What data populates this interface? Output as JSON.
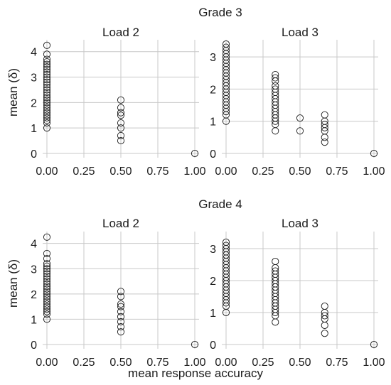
{
  "figure": {
    "xlabel": "mean response accuracy",
    "ylabel": "mean (δ)"
  },
  "chart_data": [
    {
      "type": "scatter",
      "row_title": "Grade 3",
      "title": "Load 2",
      "xlim": [
        0,
        1
      ],
      "ylim": [
        0,
        4.3
      ],
      "xticks": [
        "0.00",
        "0.25",
        "0.50",
        "0.75",
        "1.00"
      ],
      "yticks": [
        "0",
        "1",
        "2",
        "3",
        "4"
      ],
      "points": [
        [
          0,
          4.25
        ],
        [
          0,
          3.9
        ],
        [
          0,
          3.7
        ],
        [
          0,
          3.6
        ],
        [
          0,
          3.5
        ],
        [
          0,
          3.4
        ],
        [
          0,
          3.3
        ],
        [
          0,
          3.2
        ],
        [
          0,
          3.1
        ],
        [
          0,
          3.0
        ],
        [
          0,
          2.9
        ],
        [
          0,
          2.8
        ],
        [
          0,
          2.7
        ],
        [
          0,
          2.6
        ],
        [
          0,
          2.5
        ],
        [
          0,
          2.4
        ],
        [
          0,
          2.3
        ],
        [
          0,
          2.2
        ],
        [
          0,
          2.1
        ],
        [
          0,
          2.0
        ],
        [
          0,
          1.9
        ],
        [
          0,
          1.8
        ],
        [
          0,
          1.7
        ],
        [
          0,
          1.6
        ],
        [
          0,
          1.5
        ],
        [
          0,
          1.4
        ],
        [
          0,
          1.3
        ],
        [
          0,
          1.2
        ],
        [
          0,
          1.0
        ],
        [
          0.5,
          2.1
        ],
        [
          0.5,
          1.8
        ],
        [
          0.5,
          1.6
        ],
        [
          0.5,
          1.5
        ],
        [
          0.5,
          1.2
        ],
        [
          0.5,
          1.0
        ],
        [
          0.5,
          0.7
        ],
        [
          0.5,
          0.5
        ],
        [
          1,
          0
        ]
      ]
    },
    {
      "type": "scatter",
      "row_title": "Grade 3",
      "title": "Load 3",
      "xlim": [
        0,
        1
      ],
      "ylim": [
        0,
        3.4
      ],
      "xticks": [
        "0.00",
        "0.25",
        "0.50",
        "0.75",
        "1.00"
      ],
      "yticks": [
        "0",
        "1",
        "2",
        "3"
      ],
      "points": [
        [
          0,
          3.4
        ],
        [
          0,
          3.3
        ],
        [
          0,
          3.2
        ],
        [
          0,
          3.1
        ],
        [
          0,
          3.0
        ],
        [
          0,
          2.9
        ],
        [
          0,
          2.8
        ],
        [
          0,
          2.7
        ],
        [
          0,
          2.6
        ],
        [
          0,
          2.5
        ],
        [
          0,
          2.4
        ],
        [
          0,
          2.3
        ],
        [
          0,
          2.2
        ],
        [
          0,
          2.1
        ],
        [
          0,
          2.0
        ],
        [
          0,
          1.9
        ],
        [
          0,
          1.8
        ],
        [
          0,
          1.7
        ],
        [
          0,
          1.6
        ],
        [
          0,
          1.5
        ],
        [
          0,
          1.4
        ],
        [
          0,
          1.3
        ],
        [
          0,
          1.2
        ],
        [
          0,
          1.0
        ],
        [
          0.333,
          2.45
        ],
        [
          0.333,
          2.35
        ],
        [
          0.333,
          2.25
        ],
        [
          0.333,
          2.1
        ],
        [
          0.333,
          2.0
        ],
        [
          0.333,
          1.9
        ],
        [
          0.333,
          1.8
        ],
        [
          0.333,
          1.7
        ],
        [
          0.333,
          1.6
        ],
        [
          0.333,
          1.5
        ],
        [
          0.333,
          1.4
        ],
        [
          0.333,
          1.3
        ],
        [
          0.333,
          1.2
        ],
        [
          0.333,
          1.1
        ],
        [
          0.333,
          1.0
        ],
        [
          0.333,
          0.9
        ],
        [
          0.333,
          0.7
        ],
        [
          0.5,
          1.1
        ],
        [
          0.5,
          0.7
        ],
        [
          0.667,
          1.2
        ],
        [
          0.667,
          1.0
        ],
        [
          0.667,
          0.9
        ],
        [
          0.667,
          0.8
        ],
        [
          0.667,
          0.7
        ],
        [
          0.667,
          0.5
        ],
        [
          0.667,
          0.35
        ],
        [
          1,
          0
        ]
      ]
    },
    {
      "type": "scatter",
      "row_title": "Grade 4",
      "title": "Load 2",
      "xlim": [
        0,
        1
      ],
      "ylim": [
        0,
        4.3
      ],
      "xticks": [
        "0.00",
        "0.25",
        "0.50",
        "0.75",
        "1.00"
      ],
      "yticks": [
        "0",
        "1",
        "2",
        "3",
        "4"
      ],
      "points": [
        [
          0,
          4.25
        ],
        [
          0,
          3.6
        ],
        [
          0,
          3.4
        ],
        [
          0,
          3.2
        ],
        [
          0,
          3.1
        ],
        [
          0,
          3.0
        ],
        [
          0,
          2.9
        ],
        [
          0,
          2.8
        ],
        [
          0,
          2.7
        ],
        [
          0,
          2.6
        ],
        [
          0,
          2.5
        ],
        [
          0,
          2.4
        ],
        [
          0,
          2.3
        ],
        [
          0,
          2.2
        ],
        [
          0,
          2.1
        ],
        [
          0,
          2.0
        ],
        [
          0,
          1.9
        ],
        [
          0,
          1.8
        ],
        [
          0,
          1.7
        ],
        [
          0,
          1.6
        ],
        [
          0,
          1.5
        ],
        [
          0,
          1.4
        ],
        [
          0,
          1.3
        ],
        [
          0,
          1.2
        ],
        [
          0,
          1.0
        ],
        [
          0.5,
          2.1
        ],
        [
          0.5,
          1.9
        ],
        [
          0.5,
          1.6
        ],
        [
          0.5,
          1.5
        ],
        [
          0.5,
          1.3
        ],
        [
          0.5,
          1.1
        ],
        [
          0.5,
          0.9
        ],
        [
          0.5,
          0.7
        ],
        [
          0.5,
          0.5
        ],
        [
          1,
          0
        ]
      ]
    },
    {
      "type": "scatter",
      "row_title": "Grade 4",
      "title": "Load 3",
      "xlim": [
        0,
        1
      ],
      "ylim": [
        0,
        3.4
      ],
      "xticks": [
        "0.00",
        "0.25",
        "0.50",
        "0.75",
        "1.00"
      ],
      "yticks": [
        "0",
        "1",
        "2",
        "3"
      ],
      "points": [
        [
          0,
          3.2
        ],
        [
          0,
          3.1
        ],
        [
          0,
          3.0
        ],
        [
          0,
          2.9
        ],
        [
          0,
          2.8
        ],
        [
          0,
          2.7
        ],
        [
          0,
          2.6
        ],
        [
          0,
          2.5
        ],
        [
          0,
          2.4
        ],
        [
          0,
          2.3
        ],
        [
          0,
          2.2
        ],
        [
          0,
          2.1
        ],
        [
          0,
          2.0
        ],
        [
          0,
          1.9
        ],
        [
          0,
          1.8
        ],
        [
          0,
          1.7
        ],
        [
          0,
          1.6
        ],
        [
          0,
          1.5
        ],
        [
          0,
          1.4
        ],
        [
          0,
          1.3
        ],
        [
          0,
          1.2
        ],
        [
          0,
          1.0
        ],
        [
          0.333,
          2.6
        ],
        [
          0.333,
          2.4
        ],
        [
          0.333,
          2.3
        ],
        [
          0.333,
          2.2
        ],
        [
          0.333,
          2.1
        ],
        [
          0.333,
          2.0
        ],
        [
          0.333,
          1.9
        ],
        [
          0.333,
          1.8
        ],
        [
          0.333,
          1.7
        ],
        [
          0.333,
          1.6
        ],
        [
          0.333,
          1.5
        ],
        [
          0.333,
          1.4
        ],
        [
          0.333,
          1.3
        ],
        [
          0.333,
          1.2
        ],
        [
          0.333,
          1.1
        ],
        [
          0.333,
          1.0
        ],
        [
          0.333,
          0.9
        ],
        [
          0.333,
          0.7
        ],
        [
          0.667,
          1.2
        ],
        [
          0.667,
          1.0
        ],
        [
          0.667,
          0.9
        ],
        [
          0.667,
          0.8
        ],
        [
          0.667,
          0.6
        ],
        [
          0.667,
          0.35
        ],
        [
          1,
          0
        ]
      ]
    }
  ]
}
